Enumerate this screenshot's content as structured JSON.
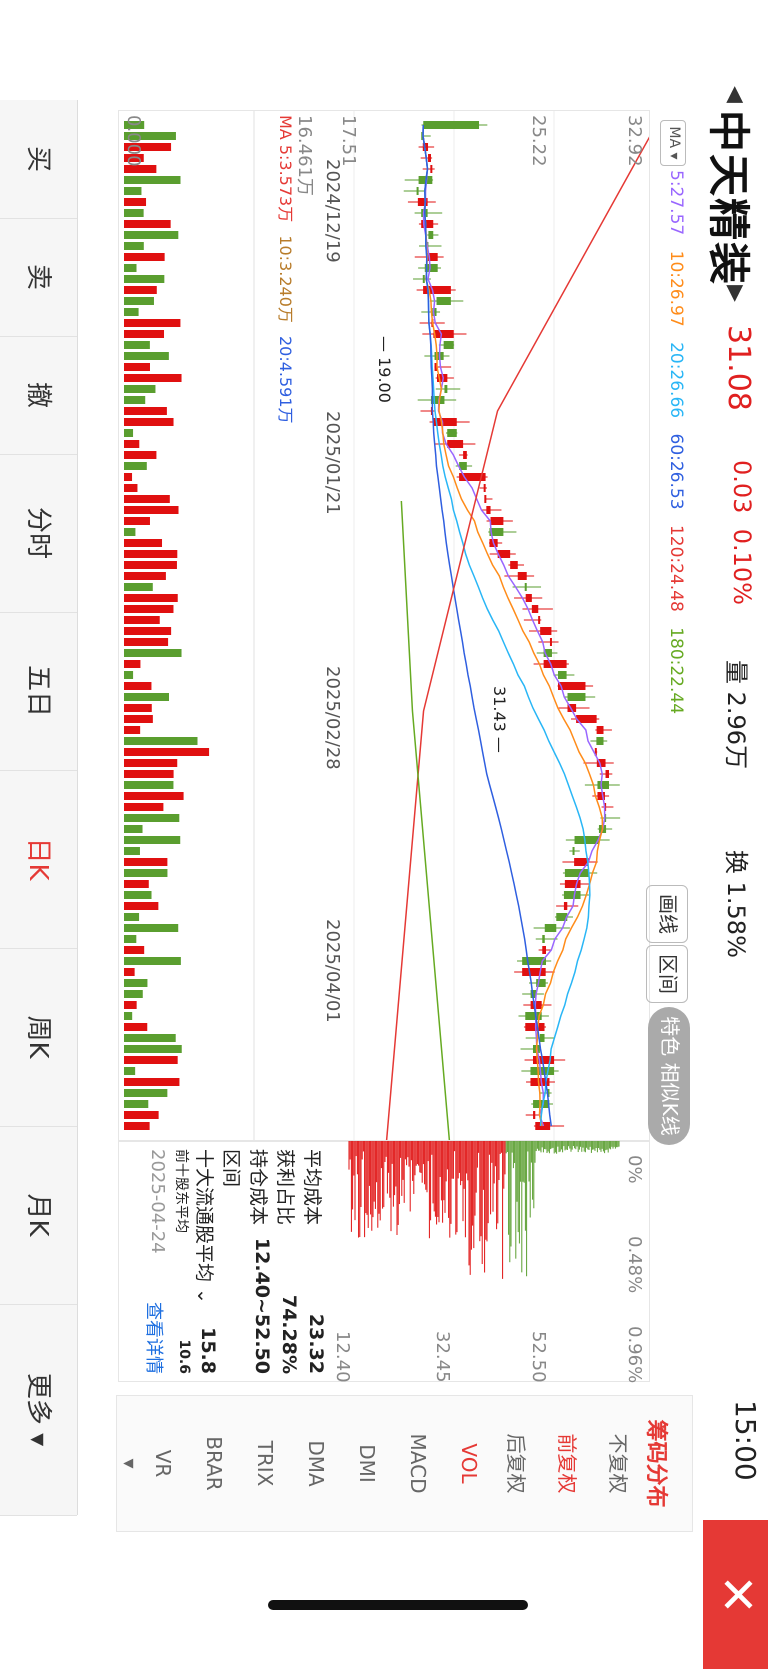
{
  "header": {
    "title": "中天精装",
    "price": "31.08",
    "change": "0.03",
    "change_pct": "0.10%",
    "volume": "量 2.96万",
    "turnover": "换 1.58%",
    "time": "15:00"
  },
  "close_icon": "close-icon",
  "ma_legend": {
    "button": "MA",
    "items": [
      {
        "label": "5:27.57",
        "color": "#9966ff"
      },
      {
        "label": "10:26.97",
        "color": "#ff8c1a"
      },
      {
        "label": "20:26.66",
        "color": "#29b6f6"
      },
      {
        "label": "60:26.53",
        "color": "#2f5fe0"
      },
      {
        "label": "120:24.48",
        "color": "#e53935"
      },
      {
        "label": "180:22.44",
        "color": "#66aa22"
      }
    ]
  },
  "pills": {
    "draw": "画线",
    "range": "区间",
    "feature": "特色 相似K线 >"
  },
  "axis": {
    "y_top": "32.92",
    "y_mid": "25.22",
    "y_low": "17.51",
    "vol_top": "16.461万",
    "vol_bottom": "0.000"
  },
  "annotations": {
    "high": "31.43",
    "low": "19.00"
  },
  "dates": [
    "2024/12/19",
    "2025/01/21",
    "2025/02/28",
    "2025/04/01"
  ],
  "vol_legend": {
    "ma5": "MA 5:3.573万",
    "ma10": "10:3.240万",
    "ma20": "20:4.591万"
  },
  "chip": {
    "pct_ticks": [
      "0%",
      "0.48%",
      "0.96%"
    ],
    "price_ticks": [
      "52.50",
      "32.45",
      "12.40"
    ],
    "avg_cost_label": "平均成本",
    "avg_cost": "23.32",
    "profit_label": "获利占比",
    "profit": "74.28%",
    "range_label": "持仓成本区间",
    "range": "12.40~52.50",
    "top10_label": "十大流通股平均",
    "top10": "15.8",
    "extra_label": "前十股东平均",
    "extra": "10.6",
    "date": "2025-04-24",
    "detail": "查看详情"
  },
  "right_menu": {
    "title": "筹码分布",
    "items": [
      "不复权",
      "前复权",
      "后复权",
      "VOL",
      "MACD",
      "DMI",
      "DMA",
      "TRIX",
      "BRAR",
      "VR"
    ],
    "active_fq": "前复权",
    "active_ind": "VOL"
  },
  "tabs": [
    "买",
    "卖",
    "撤",
    "分时",
    "五日",
    "日K",
    "周K",
    "月K",
    "更多"
  ],
  "active_tab": "日K",
  "chart_data": {
    "type": "candlestick",
    "title": "中天精装",
    "x_labels": [
      "2024/12/19",
      "2025/01/21",
      "2025/02/28",
      "2025/04/01"
    ],
    "ylim": [
      17.51,
      32.92
    ],
    "ticks": [
      32.92,
      25.22,
      17.51
    ],
    "high_mark": 31.43,
    "low_mark": 19.0,
    "ma": {
      "5": 27.57,
      "10": 26.97,
      "20": 26.66,
      "60": 26.53,
      "120": 24.48,
      "180": 22.44
    },
    "volume_range": [
      0,
      16.461
    ],
    "volume_unit": "万"
  }
}
